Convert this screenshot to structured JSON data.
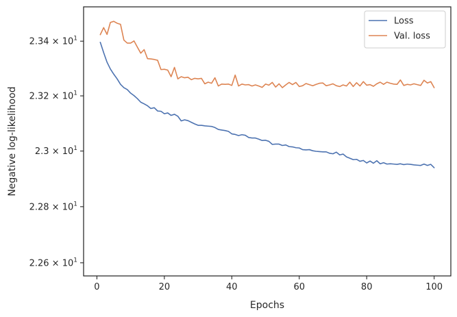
{
  "chart_data": {
    "type": "line",
    "xlabel": "Epochs",
    "ylabel": "Negative log-likelihood",
    "xlim": [
      -3.95,
      104.95
    ],
    "ylim": [
      22.5535,
      23.5265
    ],
    "yscale": "log",
    "grid": false,
    "legend_position": "top-right",
    "xticks": [
      0,
      20,
      40,
      60,
      80,
      100
    ],
    "yticks": [
      {
        "value": 22.6,
        "label": "2.26 × 10¹",
        "mant": "2.26",
        "base": "10",
        "exp": "1"
      },
      {
        "value": 22.8,
        "label": "2.28 × 10¹",
        "mant": "2.28",
        "base": "10",
        "exp": "1"
      },
      {
        "value": 23.0,
        "label": "2.3 × 10¹",
        "mant": "2.3",
        "base": "10",
        "exp": "1"
      },
      {
        "value": 23.2,
        "label": "2.32 × 10¹",
        "mant": "2.32",
        "base": "10",
        "exp": "1"
      },
      {
        "value": 23.4,
        "label": "2.34 × 10¹",
        "mant": "2.34",
        "base": "10",
        "exp": "1"
      }
    ],
    "x": [
      1,
      2,
      3,
      4,
      5,
      6,
      7,
      8,
      9,
      10,
      11,
      12,
      13,
      14,
      15,
      16,
      17,
      18,
      19,
      20,
      21,
      22,
      23,
      24,
      25,
      26,
      27,
      28,
      29,
      30,
      31,
      32,
      33,
      34,
      35,
      36,
      37,
      38,
      39,
      40,
      41,
      42,
      43,
      44,
      45,
      46,
      47,
      48,
      49,
      50,
      51,
      52,
      53,
      54,
      55,
      56,
      57,
      58,
      59,
      60,
      61,
      62,
      63,
      64,
      65,
      66,
      67,
      68,
      69,
      70,
      71,
      72,
      73,
      74,
      75,
      76,
      77,
      78,
      79,
      80,
      81,
      82,
      83,
      84,
      85,
      86,
      87,
      88,
      89,
      90,
      91,
      92,
      93,
      94,
      95,
      96,
      97,
      98,
      99,
      100
    ],
    "series": [
      {
        "name": "Loss",
        "color": "#4c72b0",
        "values": [
          23.396,
          23.358,
          23.323,
          23.298,
          23.279,
          23.262,
          23.242,
          23.23,
          23.223,
          23.21,
          23.201,
          23.19,
          23.177,
          23.171,
          23.164,
          23.154,
          23.157,
          23.145,
          23.144,
          23.135,
          23.138,
          23.129,
          23.133,
          23.126,
          23.109,
          23.113,
          23.11,
          23.104,
          23.098,
          23.093,
          23.093,
          23.091,
          23.09,
          23.089,
          23.085,
          23.078,
          23.076,
          23.074,
          23.071,
          23.062,
          23.06,
          23.056,
          23.059,
          23.057,
          23.049,
          23.047,
          23.047,
          23.043,
          23.038,
          23.039,
          23.035,
          23.024,
          23.025,
          23.025,
          23.02,
          23.022,
          23.016,
          23.015,
          23.012,
          23.011,
          23.005,
          23.004,
          23.005,
          23.001,
          22.999,
          22.998,
          22.997,
          22.997,
          22.992,
          22.99,
          22.996,
          22.986,
          22.989,
          22.979,
          22.974,
          22.969,
          22.97,
          22.963,
          22.966,
          22.957,
          22.964,
          22.956,
          22.965,
          22.954,
          22.958,
          22.953,
          22.954,
          22.953,
          22.952,
          22.954,
          22.951,
          22.953,
          22.952,
          22.95,
          22.949,
          22.948,
          22.953,
          22.948,
          22.952,
          22.94
        ],
        "note_unused": ""
      },
      {
        "name": "Val. loss",
        "color": "#dd8452",
        "values": [
          23.424,
          23.45,
          23.425,
          23.469,
          23.473,
          23.466,
          23.462,
          23.404,
          23.393,
          23.393,
          23.401,
          23.378,
          23.356,
          23.369,
          23.336,
          23.335,
          23.333,
          23.33,
          23.296,
          23.297,
          23.294,
          23.27,
          23.304,
          23.262,
          23.27,
          23.266,
          23.268,
          23.259,
          23.264,
          23.262,
          23.264,
          23.244,
          23.25,
          23.246,
          23.266,
          23.236,
          23.243,
          23.242,
          23.243,
          23.238,
          23.276,
          23.236,
          23.243,
          23.24,
          23.241,
          23.236,
          23.24,
          23.236,
          23.231,
          23.243,
          23.239,
          23.249,
          23.232,
          23.244,
          23.23,
          23.24,
          23.249,
          23.241,
          23.249,
          23.234,
          23.237,
          23.245,
          23.241,
          23.237,
          23.242,
          23.246,
          23.247,
          23.237,
          23.24,
          23.244,
          23.237,
          23.234,
          23.24,
          23.236,
          23.25,
          23.234,
          23.248,
          23.236,
          23.252,
          23.239,
          23.241,
          23.235,
          23.244,
          23.25,
          23.242,
          23.25,
          23.246,
          23.243,
          23.242,
          23.258,
          23.238,
          23.242,
          23.24,
          23.244,
          23.241,
          23.238,
          23.257,
          23.247,
          23.252,
          23.23
        ]
      }
    ]
  }
}
